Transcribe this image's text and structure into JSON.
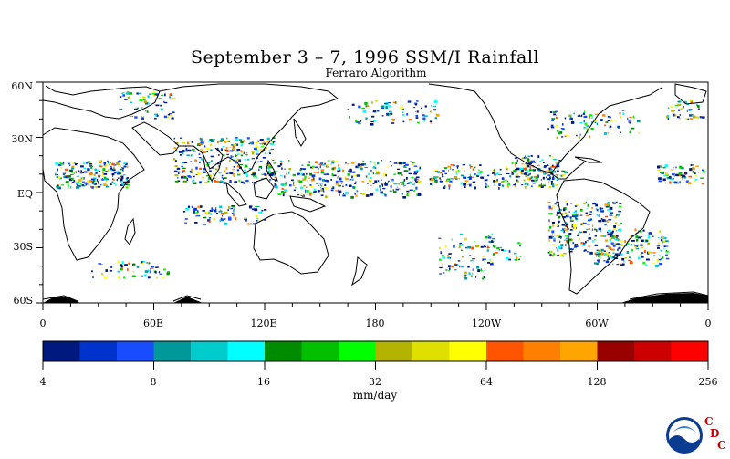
{
  "title": "September 3 – 7, 1996 SSM/I Rainfall",
  "subtitle": "Ferraro Algorithm",
  "lat_labels": [
    "60N",
    "30N",
    "EQ",
    "30S",
    "60S"
  ],
  "lon_labels": [
    "0",
    "60E",
    "120E",
    "180",
    "120W",
    "60W",
    "0"
  ],
  "colorbar": {
    "labels": [
      "4",
      "8",
      "16",
      "32",
      "64",
      "128",
      "256"
    ],
    "units": "mm/day",
    "colors": [
      "#00197f",
      "#0033cc",
      "#1a4cff",
      "#009999",
      "#00cccc",
      "#00ffff",
      "#008c00",
      "#00c000",
      "#00ff00",
      "#b3b300",
      "#e0e000",
      "#ffff00",
      "#ff5500",
      "#ff8000",
      "#ffa500",
      "#990000",
      "#cc0000",
      "#ff0000"
    ]
  },
  "logo": {
    "text": "NOAA",
    "letters": [
      "C",
      "D",
      "C"
    ]
  }
}
